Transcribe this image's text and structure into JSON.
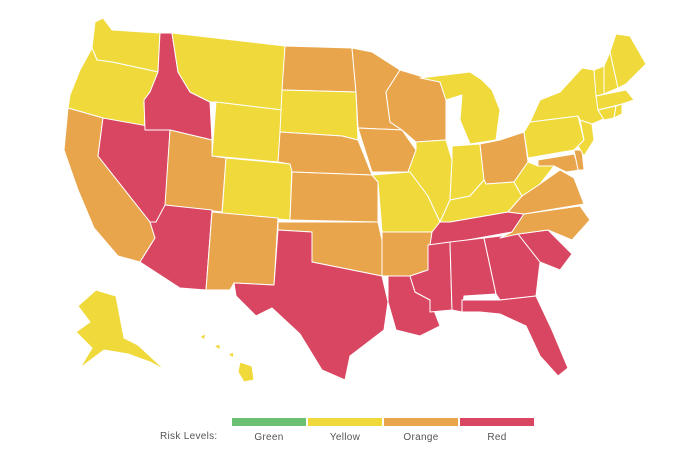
{
  "colors": {
    "green": "#6cc073",
    "yellow": "#f0d93a",
    "orange": "#e8a54b",
    "red": "#d94661"
  },
  "legend": {
    "title": "Risk Levels:",
    "items": [
      {
        "label": "Green",
        "color": "#6cc073"
      },
      {
        "label": "Yellow",
        "color": "#f0d93a"
      },
      {
        "label": "Orange",
        "color": "#e8a54b"
      },
      {
        "label": "Red",
        "color": "#d94661"
      }
    ]
  },
  "states": {
    "WA": "yellow",
    "OR": "yellow",
    "CA": "orange",
    "NV": "red",
    "ID": "red",
    "MT": "yellow",
    "WY": "yellow",
    "UT": "orange",
    "AZ": "red",
    "CO": "yellow",
    "NM": "orange",
    "ND": "orange",
    "SD": "yellow",
    "NE": "orange",
    "KS": "orange",
    "OK": "orange",
    "TX": "red",
    "MN": "orange",
    "IA": "orange",
    "MO": "yellow",
    "AR": "orange",
    "LA": "red",
    "WI": "orange",
    "IL": "yellow",
    "MI": "yellow",
    "IN": "yellow",
    "OH": "orange",
    "KY": "yellow",
    "TN": "red",
    "MS": "red",
    "AL": "red",
    "GA": "red",
    "FL": "red",
    "SC": "red",
    "NC": "orange",
    "VA": "orange",
    "WV": "yellow",
    "PA": "yellow",
    "NY": "yellow",
    "ME": "yellow",
    "NH": "yellow",
    "VT": "yellow",
    "MA": "yellow",
    "CT": "yellow",
    "RI": "yellow",
    "NJ": "yellow",
    "DE": "orange",
    "MD": "orange",
    "AK": "yellow",
    "HI": "yellow"
  }
}
